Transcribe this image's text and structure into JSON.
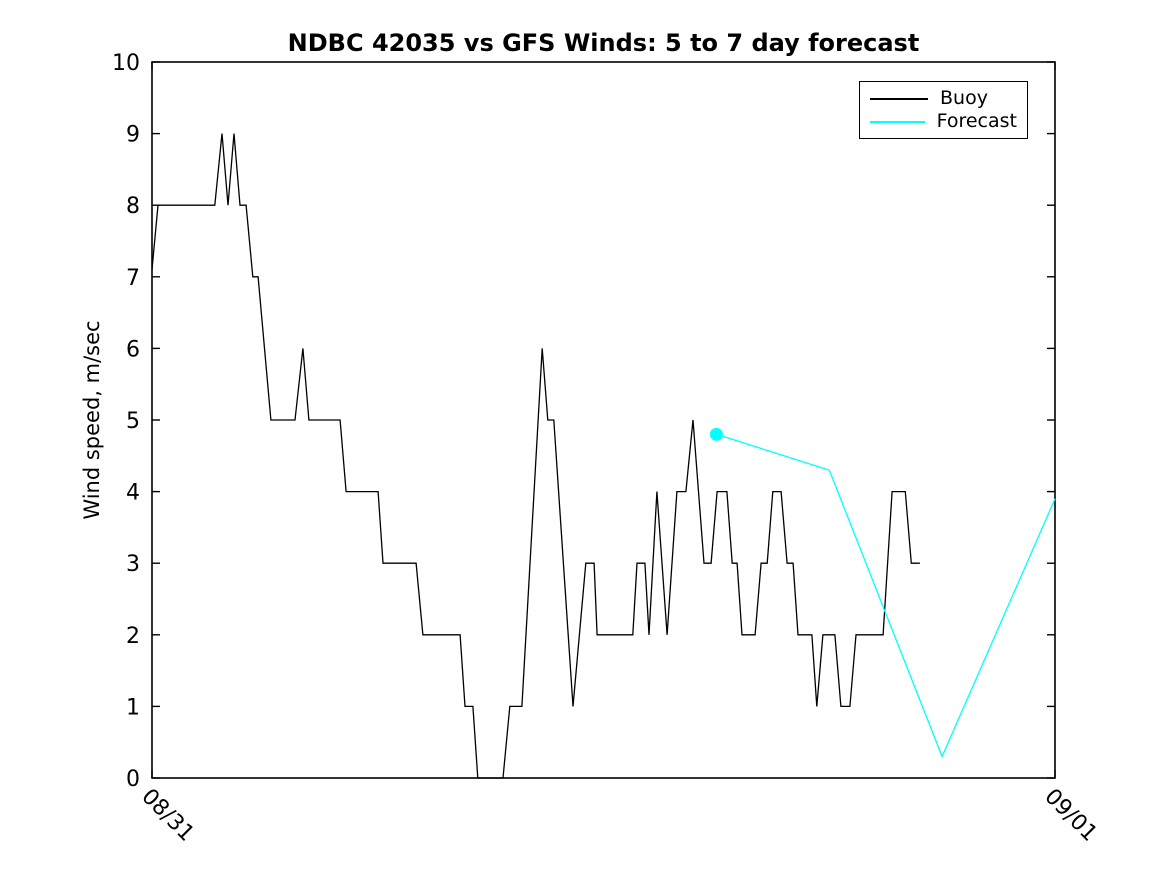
{
  "chart_data": {
    "type": "line",
    "title": "NDBC 42035 vs GFS Winds: 5 to 7 day forecast",
    "xlabel": "",
    "ylabel": "Wind speed, m/sec",
    "x_unit": "hours since 08/31 00:00",
    "xlim": [
      0,
      24
    ],
    "ylim": [
      0,
      10
    ],
    "yticks": [
      0,
      1,
      2,
      3,
      4,
      5,
      6,
      7,
      8,
      9,
      10
    ],
    "xticks": [
      {
        "pos": 0,
        "label": "08/31"
      },
      {
        "pos": 24,
        "label": "09/01"
      }
    ],
    "grid": false,
    "legend": {
      "position": "top-right",
      "entries": [
        {
          "name": "Buoy",
          "color": "#000000"
        },
        {
          "name": "Forecast",
          "color": "#00FFFF"
        }
      ]
    },
    "series": [
      {
        "name": "Buoy",
        "color": "#000000",
        "marker": "none",
        "points": [
          [
            0.0,
            7.1
          ],
          [
            0.16,
            8
          ],
          [
            1.67,
            8
          ],
          [
            1.86,
            9
          ],
          [
            2.02,
            8
          ],
          [
            2.18,
            9
          ],
          [
            2.34,
            8
          ],
          [
            2.5,
            8
          ],
          [
            2.68,
            7
          ],
          [
            2.82,
            7
          ],
          [
            3.16,
            5
          ],
          [
            3.8,
            5
          ],
          [
            4.01,
            6
          ],
          [
            4.17,
            5
          ],
          [
            5.0,
            5
          ],
          [
            5.16,
            4
          ],
          [
            6.01,
            4
          ],
          [
            6.14,
            3
          ],
          [
            7.02,
            3
          ],
          [
            7.2,
            2
          ],
          [
            8.19,
            2
          ],
          [
            8.32,
            1
          ],
          [
            8.53,
            1
          ],
          [
            8.66,
            0
          ],
          [
            9.33,
            0
          ],
          [
            9.51,
            1
          ],
          [
            9.83,
            1
          ],
          [
            10.37,
            6
          ],
          [
            10.52,
            5
          ],
          [
            10.68,
            5
          ],
          [
            11.19,
            1
          ],
          [
            11.53,
            3
          ],
          [
            11.75,
            3
          ],
          [
            11.83,
            2
          ],
          [
            12.78,
            2
          ],
          [
            12.89,
            3
          ],
          [
            13.1,
            3
          ],
          [
            13.21,
            2
          ],
          [
            13.42,
            4
          ],
          [
            13.69,
            2
          ],
          [
            13.95,
            4
          ],
          [
            14.19,
            4
          ],
          [
            14.38,
            5
          ],
          [
            14.67,
            3
          ],
          [
            14.86,
            3
          ],
          [
            15.02,
            4
          ],
          [
            15.28,
            4
          ],
          [
            15.42,
            3
          ],
          [
            15.55,
            3
          ],
          [
            15.68,
            2
          ],
          [
            16.03,
            2
          ],
          [
            16.19,
            3
          ],
          [
            16.35,
            3
          ],
          [
            16.5,
            4
          ],
          [
            16.72,
            4
          ],
          [
            16.88,
            3
          ],
          [
            17.04,
            3
          ],
          [
            17.17,
            2
          ],
          [
            17.54,
            2
          ],
          [
            17.67,
            1
          ],
          [
            17.83,
            2
          ],
          [
            18.15,
            2
          ],
          [
            18.31,
            1
          ],
          [
            18.55,
            1
          ],
          [
            18.71,
            2
          ],
          [
            19.43,
            2
          ],
          [
            19.67,
            4
          ],
          [
            20.02,
            4
          ],
          [
            20.18,
            3
          ],
          [
            20.41,
            3
          ]
        ]
      },
      {
        "name": "Forecast",
        "color": "#00FFFF",
        "marker": "circle-first-point",
        "marker_radius": 6.5,
        "points": [
          [
            15.0,
            4.8
          ],
          [
            18.0,
            4.3
          ],
          [
            21.0,
            0.3
          ],
          [
            24.0,
            3.9
          ]
        ]
      }
    ]
  }
}
